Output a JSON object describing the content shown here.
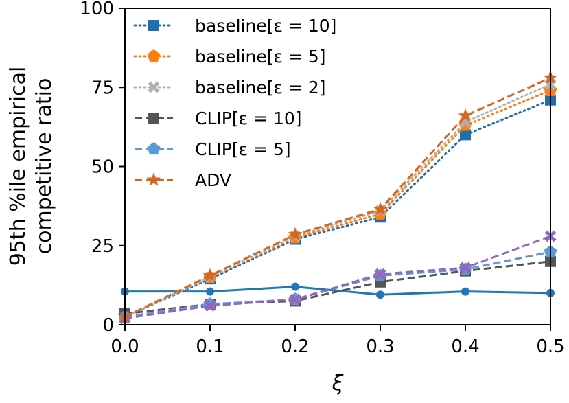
{
  "chart_data": {
    "type": "line",
    "title": "",
    "xlabel": "ξ",
    "ylabel_lines": [
      "95th %ile empirical",
      "competitive ratio"
    ],
    "x": [
      0.0,
      0.1,
      0.2,
      0.3,
      0.4,
      0.5
    ],
    "xlim": [
      0.0,
      0.5
    ],
    "ylim": [
      0,
      100
    ],
    "xticks": [
      "0.0",
      "0.1",
      "0.2",
      "0.3",
      "0.4",
      "0.5"
    ],
    "yticks": [
      "0",
      "25",
      "50",
      "75",
      "100"
    ],
    "grid": false,
    "legend_position": "upper-left",
    "series": [
      {
        "name": "baseline[ε = 10]",
        "legend_label": "baseline[ε = 10]",
        "color": "#1f6fad",
        "dash": "dotted",
        "marker": "square",
        "values": [
          2.5,
          14.5,
          27,
          34,
          60,
          71
        ]
      },
      {
        "name": "baseline[ε = 5]",
        "legend_label": "baseline[ε = 5]",
        "color": "#ff7f0e",
        "dash": "dotted",
        "marker": "pentagon",
        "values": [
          2.5,
          15,
          27.5,
          35,
          63,
          74
        ]
      },
      {
        "name": "baseline[ε = 2]",
        "legend_label": "baseline[ε = 2]",
        "color": "#b0b0b0",
        "dash": "dotted",
        "marker": "x",
        "values": [
          2.5,
          15,
          28,
          36,
          64,
          76
        ]
      },
      {
        "name": "CLIP[ε = 10]",
        "legend_label": "CLIP[ε = 10]",
        "color": "#555555",
        "dash": "dashed",
        "marker": "square",
        "values": [
          3.5,
          6.5,
          7.5,
          13.5,
          17,
          20
        ]
      },
      {
        "name": "CLIP[ε = 5]",
        "legend_label": "CLIP[ε = 5]",
        "color": "#5b9bd5",
        "dash": "dashed",
        "marker": "pentagon",
        "values": [
          2.5,
          6.5,
          8,
          15.5,
          17.5,
          23
        ]
      },
      {
        "name": "ADV",
        "legend_label": "ADV",
        "color": "#d9661f",
        "dash": "dashed",
        "marker": "star",
        "values": [
          2.5,
          15.5,
          28.5,
          36.5,
          66,
          78
        ]
      },
      {
        "name": "purple-dashed",
        "legend_label": "",
        "color": "#9467bd",
        "dash": "dashed",
        "marker": "x",
        "values": [
          2,
          6,
          8,
          16,
          18,
          28
        ]
      },
      {
        "name": "blue-solid",
        "legend_label": "",
        "color": "#1f77b4",
        "dash": "solid",
        "marker": "circle",
        "values": [
          10.5,
          10.5,
          12,
          9.5,
          10.5,
          10
        ]
      }
    ]
  }
}
